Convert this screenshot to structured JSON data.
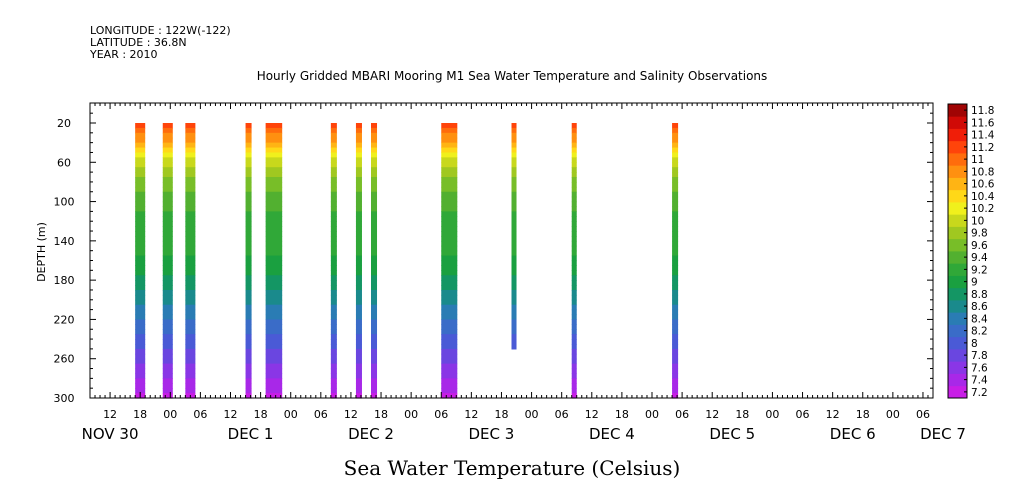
{
  "header": {
    "longitude": "LONGITUDE : 122W(-122)",
    "latitude": "LATITUDE : 36.8N",
    "year": "YEAR : 2010"
  },
  "chart_data": {
    "type": "heatmap",
    "title": "Hourly Gridded MBARI Mooring M1 Sea Water Temperature and Salinity Observations",
    "xlabel": "",
    "ylabel": "DEPTH (m)",
    "caption": "Sea Water Temperature (Celsius)",
    "x_hours_start": 8,
    "x_hours_end": 176,
    "x_hour_ticks": [
      "12",
      "18",
      "00",
      "06",
      "12",
      "18",
      "00",
      "06",
      "12",
      "18",
      "00",
      "06",
      "12",
      "18",
      "00",
      "06",
      "12",
      "18",
      "00",
      "06",
      "12",
      "18",
      "00",
      "06",
      "12",
      "18",
      "00",
      "06"
    ],
    "x_day_labels": [
      {
        "label": "NOV 30",
        "hour": 12
      },
      {
        "label": "DEC  1",
        "hour": 40
      },
      {
        "label": "DEC  2",
        "hour": 64
      },
      {
        "label": "DEC  3",
        "hour": 88
      },
      {
        "label": "DEC  4",
        "hour": 112
      },
      {
        "label": "DEC  5",
        "hour": 136
      },
      {
        "label": "DEC  6",
        "hour": 160
      },
      {
        "label": "DEC  7",
        "hour": 178
      }
    ],
    "ylim": [
      300,
      0
    ],
    "y_ticks": [
      20,
      60,
      100,
      140,
      180,
      220,
      260,
      300
    ],
    "colorbar": {
      "levels": [
        7.2,
        7.4,
        7.6,
        7.8,
        8,
        8.2,
        8.4,
        8.6,
        8.8,
        9,
        9.2,
        9.4,
        9.6,
        9.8,
        10,
        10.2,
        10.4,
        10.6,
        10.8,
        11,
        11.2,
        11.4,
        11.6,
        11.8
      ],
      "colors": [
        "#c81ee6",
        "#a828e8",
        "#8a36e6",
        "#6a46e0",
        "#4a5ad6",
        "#3a6cc8",
        "#2a7cb4",
        "#1a8a8c",
        "#149664",
        "#1aa040",
        "#30a838",
        "#52b030",
        "#78be28",
        "#a0c820",
        "#c8d81c",
        "#f0f01c",
        "#ffd818",
        "#ffb414",
        "#ff9010",
        "#ff6c0c",
        "#ff440a",
        "#f01e08",
        "#d00a06",
        "#a00404"
      ]
    },
    "profile": [
      {
        "depth": 20,
        "temp": 11.3
      },
      {
        "depth": 35,
        "temp": 10.9
      },
      {
        "depth": 50,
        "temp": 10.3
      },
      {
        "depth": 70,
        "temp": 9.9
      },
      {
        "depth": 90,
        "temp": 9.6
      },
      {
        "depth": 110,
        "temp": 9.4
      },
      {
        "depth": 140,
        "temp": 9.3
      },
      {
        "depth": 170,
        "temp": 9.1
      },
      {
        "depth": 190,
        "temp": 8.8
      },
      {
        "depth": 215,
        "temp": 8.5
      },
      {
        "depth": 240,
        "temp": 8.1
      },
      {
        "depth": 265,
        "temp": 7.8
      },
      {
        "depth": 285,
        "temp": 7.5
      },
      {
        "depth": 300,
        "temp": 7.3
      }
    ],
    "columns": [
      {
        "start": 17,
        "end": 19,
        "depth_max": 300
      },
      {
        "start": 22.5,
        "end": 24.5,
        "depth_max": 300
      },
      {
        "start": 27,
        "end": 29,
        "depth_max": 300
      },
      {
        "start": 39,
        "end": 40.2,
        "depth_max": 300
      },
      {
        "start": 43,
        "end": 46.3,
        "depth_max": 300
      },
      {
        "start": 56,
        "end": 57.2,
        "depth_max": 300
      },
      {
        "start": 61,
        "end": 62.2,
        "depth_max": 300
      },
      {
        "start": 64,
        "end": 65.2,
        "depth_max": 300
      },
      {
        "start": 78,
        "end": 81.2,
        "depth_max": 300
      },
      {
        "start": 92,
        "end": 93,
        "depth_max": 250
      },
      {
        "start": 104,
        "end": 105,
        "depth_max": 300
      },
      {
        "start": 124,
        "end": 125.2,
        "depth_max": 300
      }
    ]
  }
}
